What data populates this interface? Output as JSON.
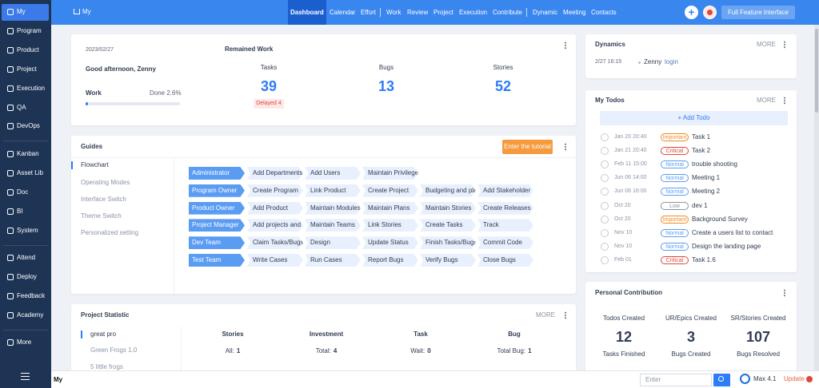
{
  "sidebar": {
    "items": [
      "My",
      "Program",
      "Product",
      "Project",
      "Execution",
      "QA",
      "DevOps",
      "Kanban",
      "Asset Lib",
      "Doc",
      "BI",
      "System",
      "Attend",
      "Deploy",
      "Feedback",
      "Academy",
      "More"
    ]
  },
  "topbar": {
    "home": "My",
    "nav": [
      [
        "Dashboard",
        "Calendar",
        "Effort"
      ],
      [
        "Work",
        "Review",
        "Project",
        "Execution",
        "Contribute"
      ],
      [
        "Dynamic",
        "Meeting",
        "Contacts"
      ]
    ],
    "button": "Full Feature Interface"
  },
  "overview": {
    "date": "2023/02/27",
    "greeting": "Good afternoon, Zenny",
    "work_label": "Work",
    "done": {
      "value": 2.6,
      "label": "Done 2.6%"
    },
    "remained_title": "Remained Work",
    "stats": [
      {
        "label": "Tasks",
        "value": 39,
        "note": "Delayed 4"
      },
      {
        "label": "Bugs",
        "value": 13
      },
      {
        "label": "Stories",
        "value": 52
      }
    ]
  },
  "guides": {
    "title": "Guides",
    "button": "Enter the tutorial",
    "menu": [
      "Flowchart",
      "Operating Modes",
      "Interface Switch",
      "Theme Switch",
      "Personalized setting"
    ],
    "flow": [
      {
        "role": "Administrator",
        "steps": [
          "Add Departments",
          "Add Users",
          "Maintain Privileges"
        ]
      },
      {
        "role": "Program Owner",
        "steps": [
          "Create Program",
          "Link Product",
          "Create Project",
          "Budgeting and planr",
          "Add Stakeholder"
        ]
      },
      {
        "role": "Product Owner",
        "steps": [
          "Add Product",
          "Maintain Modules",
          "Maintain Plans",
          "Maintain Stories",
          "Create Releases"
        ]
      },
      {
        "role": "Project Manager",
        "steps": [
          "Add projects and Ex",
          "Maintain Teams",
          "Link Stories",
          "Create Tasks",
          "Track"
        ]
      },
      {
        "role": "Dev Team",
        "steps": [
          "Claim Tasks/Bugs",
          "Design",
          "Update Status",
          "Finish Tasks/Bugs",
          "Commit Code"
        ]
      },
      {
        "role": "Test Team",
        "steps": [
          "Write Cases",
          "Run Cases",
          "Report Bugs",
          "Verify Bugs",
          "Close Bugs"
        ]
      }
    ]
  },
  "project_statistic": {
    "title": "Project Statistic",
    "more": "MORE",
    "projects": [
      "great pro",
      "Green Frogs 1.0",
      "5 little frogs"
    ],
    "columns": [
      {
        "title": "Stories",
        "label": "All:",
        "value": 1
      },
      {
        "title": "Investment",
        "label": "Total:",
        "value": 4
      },
      {
        "title": "Task",
        "label": "Wait:",
        "value": 0
      },
      {
        "title": "Bug",
        "label": "Total Bug:",
        "value": 1
      }
    ]
  },
  "dynamics": {
    "title": "Dynamics",
    "more": "MORE",
    "entries": [
      {
        "time": "2/27 16:15",
        "user": "Zenny",
        "action": "login"
      }
    ]
  },
  "todos": {
    "title": "My Todos",
    "more": "MORE",
    "add": "+ Add Todo",
    "items": [
      {
        "date": "Jan 20 20:40",
        "priority": "Important",
        "title": "Task 1"
      },
      {
        "date": "Jan 21 20:40",
        "priority": "Critical",
        "title": "Task 2"
      },
      {
        "date": "Feb 11 15:00",
        "priority": "Normal",
        "title": "trouble shooting"
      },
      {
        "date": "Jun 06 14:00",
        "priority": "Normal",
        "title": "Meeting 1"
      },
      {
        "date": "Jun 06 16:00",
        "priority": "Normal",
        "title": "Meeting 2"
      },
      {
        "date": "Oct 20",
        "priority": "Low",
        "title": "dev 1"
      },
      {
        "date": "Oct 20",
        "priority": "Important",
        "title": "Background Survey"
      },
      {
        "date": "Nov 10",
        "priority": "Normal",
        "title": "Create a users list to contact"
      },
      {
        "date": "Nov 10",
        "priority": "Normal",
        "title": "Design the landing page"
      },
      {
        "date": "Feb 01",
        "priority": "Critical",
        "title": "Task 1.6"
      }
    ]
  },
  "contribution": {
    "title": "Personal Contribution",
    "stats": [
      {
        "label": "Todos Created",
        "value": 12
      },
      {
        "label": "UR/Epics Created",
        "value": 3
      },
      {
        "label": "SR/Stories Created",
        "value": 107
      }
    ],
    "labels": [
      "Tasks Finished",
      "Bugs Created",
      "Bugs Resolved"
    ]
  },
  "footer": {
    "breadcrumb": "My",
    "search_placeholder": "Enter",
    "version": "Max 4.1",
    "update": "Update"
  }
}
